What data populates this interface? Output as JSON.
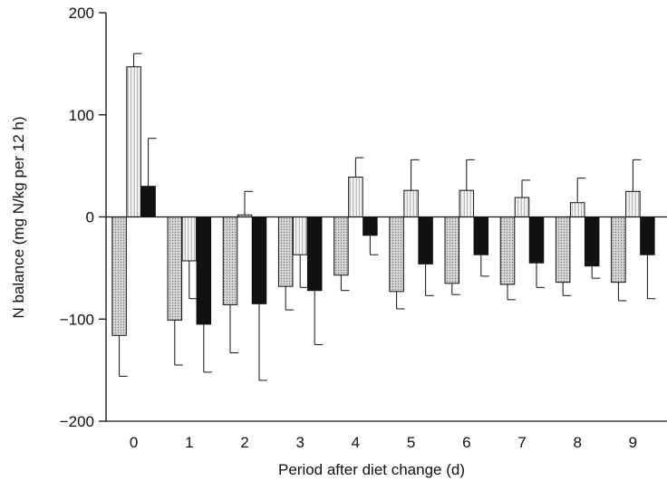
{
  "chart_data": {
    "type": "bar",
    "title": "",
    "xlabel": "Period after diet change (d)",
    "ylabel": "N balance (mg N/kg per 12 h)",
    "ylim": [
      -200,
      200
    ],
    "yticks": [
      200,
      100,
      0,
      -100,
      -200
    ],
    "yticklabels": [
      "200",
      "100",
      "0",
      "−100",
      "−200"
    ],
    "categories": [
      "0",
      "1",
      "2",
      "3",
      "4",
      "5",
      "6",
      "7",
      "8",
      "9"
    ],
    "grid": false,
    "legend": "none",
    "series": [
      {
        "fill": "dotted-grey",
        "color": "#c8c8c8",
        "values": [
          -116,
          -101,
          -86,
          -68,
          -57,
          -73,
          -65,
          -66,
          -64,
          -64
        ],
        "errors": [
          40,
          44,
          47,
          23,
          15,
          17,
          11,
          15,
          13,
          18
        ]
      },
      {
        "fill": "vertical-hatch",
        "color": "#e6e6e6",
        "values": [
          147,
          -43,
          2,
          -37,
          39,
          26,
          26,
          19,
          14,
          25
        ],
        "errors": [
          13,
          37,
          23,
          32,
          19,
          30,
          30,
          17,
          24,
          31
        ]
      },
      {
        "fill": "solid-black",
        "color": "#111111",
        "values": [
          30,
          -105,
          -85,
          -72,
          -18,
          -46,
          -37,
          -45,
          -48,
          -37
        ],
        "errors": [
          47,
          47,
          75,
          53,
          19,
          31,
          21,
          24,
          12,
          43
        ]
      }
    ]
  }
}
